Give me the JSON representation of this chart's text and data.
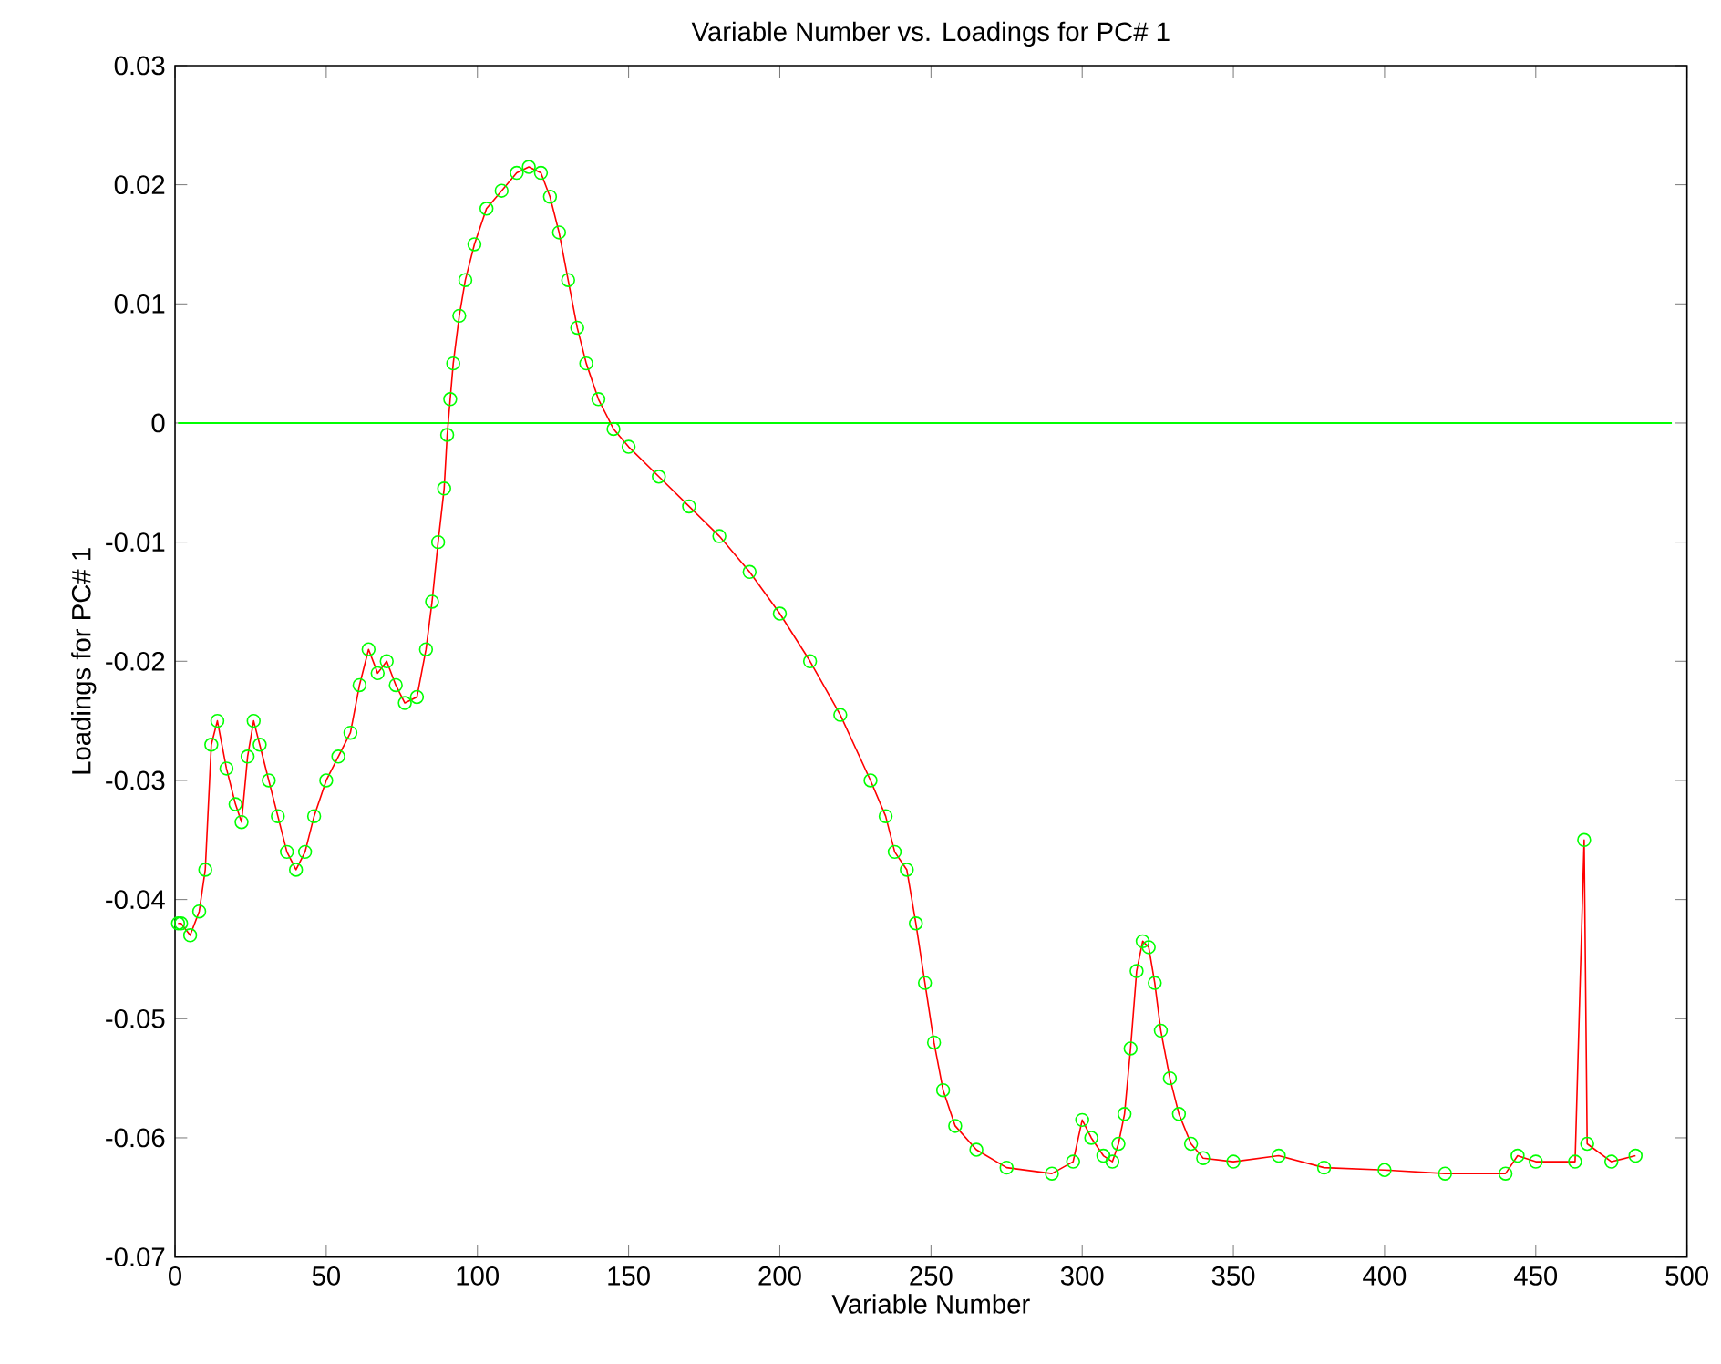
{
  "chart_data": {
    "type": "line",
    "title": "Variable Number vs. Loadings for PC# 1",
    "xlabel": "Variable Number",
    "ylabel": "Loadings for PC# 1",
    "xlim": [
      0,
      500
    ],
    "xticks": [
      0,
      50,
      100,
      150,
      200,
      250,
      300,
      350,
      400,
      450,
      500
    ],
    "ylim": [
      -0.07,
      0.03
    ],
    "yticks": [
      -0.07,
      -0.06,
      -0.05,
      -0.04,
      -0.03,
      -0.02,
      -0.01,
      0,
      0.01,
      0.02,
      0.03
    ],
    "grid": false,
    "ref_lines": [
      {
        "axis": "y",
        "value": 0,
        "color": "#00ff00"
      }
    ],
    "series": [
      {
        "color": "#ff0000",
        "marker": "none",
        "line_style": "solid",
        "x": [
          1,
          2,
          5,
          8,
          10,
          12,
          14,
          17,
          20,
          22,
          24,
          26,
          28,
          31,
          34,
          37,
          40,
          43,
          46,
          50,
          54,
          58,
          61,
          64,
          67,
          70,
          73,
          76,
          80,
          83,
          85,
          87,
          89,
          90,
          91,
          92,
          94,
          96,
          99,
          103,
          108,
          113,
          117,
          121,
          124,
          127,
          130,
          133,
          136,
          140,
          145,
          150,
          160,
          170,
          180,
          190,
          200,
          210,
          220,
          230,
          235,
          238,
          242,
          245,
          248,
          251,
          254,
          258,
          265,
          275,
          290,
          297,
          300,
          303,
          307,
          310,
          312,
          314,
          316,
          318,
          320,
          322,
          324,
          326,
          329,
          332,
          336,
          340,
          350,
          365,
          380,
          400,
          420,
          440,
          444,
          450,
          463,
          466,
          467,
          475,
          483
        ],
        "values": [
          -0.042,
          -0.042,
          -0.043,
          -0.041,
          -0.0375,
          -0.027,
          -0.025,
          -0.029,
          -0.032,
          -0.0335,
          -0.028,
          -0.025,
          -0.027,
          -0.03,
          -0.033,
          -0.036,
          -0.0375,
          -0.036,
          -0.033,
          -0.03,
          -0.028,
          -0.026,
          -0.022,
          -0.019,
          -0.021,
          -0.02,
          -0.022,
          -0.0235,
          -0.023,
          -0.019,
          -0.015,
          -0.01,
          -0.0055,
          -0.001,
          0.002,
          0.005,
          0.009,
          0.012,
          0.015,
          0.018,
          0.0195,
          0.021,
          0.0215,
          0.021,
          0.019,
          0.016,
          0.012,
          0.008,
          0.005,
          0.002,
          -0.0005,
          -0.002,
          -0.0045,
          -0.007,
          -0.0095,
          -0.0125,
          -0.016,
          -0.02,
          -0.0245,
          -0.03,
          -0.033,
          -0.036,
          -0.0375,
          -0.042,
          -0.047,
          -0.052,
          -0.056,
          -0.059,
          -0.061,
          -0.0625,
          -0.063,
          -0.062,
          -0.0585,
          -0.06,
          -0.0615,
          -0.062,
          -0.0605,
          -0.058,
          -0.0525,
          -0.046,
          -0.0435,
          -0.044,
          -0.047,
          -0.051,
          -0.055,
          -0.058,
          -0.0605,
          -0.0617,
          -0.062,
          -0.0615,
          -0.0625,
          -0.0627,
          -0.063,
          -0.063,
          -0.0615,
          -0.062,
          -0.062,
          -0.035,
          -0.0605,
          -0.062,
          -0.0615
        ]
      },
      {
        "type": "scatter",
        "color": "#00ff00",
        "marker": "circle",
        "x": [
          1,
          2,
          5,
          8,
          10,
          12,
          14,
          17,
          20,
          22,
          24,
          26,
          28,
          31,
          34,
          37,
          40,
          43,
          46,
          50,
          54,
          58,
          61,
          64,
          67,
          70,
          73,
          76,
          80,
          83,
          85,
          87,
          89,
          90,
          91,
          92,
          94,
          96,
          99,
          103,
          108,
          113,
          117,
          121,
          124,
          127,
          130,
          133,
          136,
          140,
          145,
          150,
          160,
          170,
          180,
          190,
          200,
          210,
          220,
          230,
          235,
          238,
          242,
          245,
          248,
          251,
          254,
          258,
          265,
          275,
          290,
          297,
          300,
          303,
          307,
          310,
          312,
          314,
          316,
          318,
          320,
          322,
          324,
          326,
          329,
          332,
          336,
          340,
          350,
          365,
          380,
          400,
          420,
          440,
          444,
          450,
          463,
          466,
          467,
          475,
          483
        ],
        "values": [
          -0.042,
          -0.042,
          -0.043,
          -0.041,
          -0.0375,
          -0.027,
          -0.025,
          -0.029,
          -0.032,
          -0.0335,
          -0.028,
          -0.025,
          -0.027,
          -0.03,
          -0.033,
          -0.036,
          -0.0375,
          -0.036,
          -0.033,
          -0.03,
          -0.028,
          -0.026,
          -0.022,
          -0.019,
          -0.021,
          -0.02,
          -0.022,
          -0.0235,
          -0.023,
          -0.019,
          -0.015,
          -0.01,
          -0.0055,
          -0.001,
          0.002,
          0.005,
          0.009,
          0.012,
          0.015,
          0.018,
          0.0195,
          0.021,
          0.0215,
          0.021,
          0.019,
          0.016,
          0.012,
          0.008,
          0.005,
          0.002,
          -0.0005,
          -0.002,
          -0.0045,
          -0.007,
          -0.0095,
          -0.0125,
          -0.016,
          -0.02,
          -0.0245,
          -0.03,
          -0.033,
          -0.036,
          -0.0375,
          -0.042,
          -0.047,
          -0.052,
          -0.056,
          -0.059,
          -0.061,
          -0.0625,
          -0.063,
          -0.062,
          -0.0585,
          -0.06,
          -0.0615,
          -0.062,
          -0.0605,
          -0.058,
          -0.0525,
          -0.046,
          -0.0435,
          -0.044,
          -0.047,
          -0.051,
          -0.055,
          -0.058,
          -0.0605,
          -0.0617,
          -0.062,
          -0.0615,
          -0.0625,
          -0.0627,
          -0.063,
          -0.063,
          -0.0615,
          -0.062,
          -0.062,
          -0.035,
          -0.0605,
          -0.062,
          -0.0615
        ]
      }
    ]
  }
}
